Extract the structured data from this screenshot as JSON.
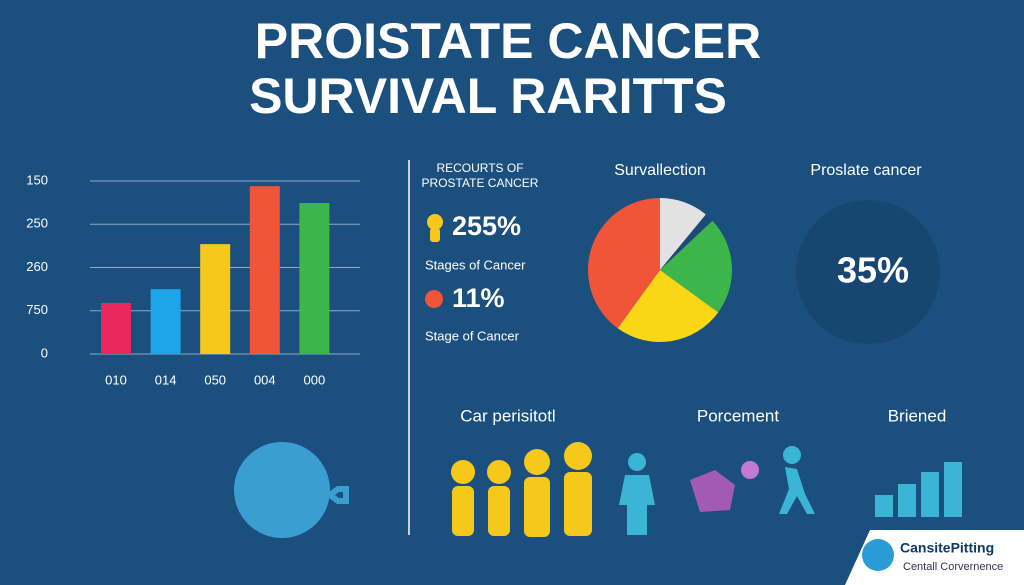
{
  "title": [
    "PROISTATE CANCER",
    "SURVIVAL RARITTS"
  ],
  "chart_data": [
    {
      "type": "bar",
      "categories": [
        "010",
        "014",
        "050",
        "004",
        "000"
      ],
      "values": [
        1.18,
        1.5,
        2.54,
        3.88,
        3.49
      ],
      "colors": [
        "#e8285e",
        "#1ea4e8",
        "#f6c81a",
        "#f0553a",
        "#3cb54a"
      ],
      "ylim": [
        0,
        4
      ],
      "yticks": [
        {
          "value": 0,
          "label": "0"
        },
        {
          "value": 1,
          "label": "750"
        },
        {
          "value": 2,
          "label": "260"
        },
        {
          "value": 3,
          "label": "250"
        },
        {
          "value": 4,
          "label": "150"
        }
      ],
      "grid": true
    },
    {
      "type": "pie",
      "title": "Survallection",
      "values": [
        11,
        2,
        22,
        25,
        40
      ],
      "colors": [
        "#e2e2e2",
        "#1e4a7a",
        "#3cb54a",
        "#f9d616",
        "#f0553a"
      ]
    }
  ],
  "stats": {
    "heading": [
      "RECOURTS OF",
      "PROSTATE CANCER"
    ],
    "items": [
      {
        "value": "255%",
        "label": "Stages of Cancer"
      },
      {
        "value": "11%",
        "label": "Stage of Cancer"
      }
    ]
  },
  "circle": {
    "title": "Proslate cancer",
    "value": "35%"
  },
  "bottom_labels": [
    "Car perisitotl",
    "Porcement",
    "Briened"
  ],
  "logo": {
    "name": "CansitePitting",
    "sub": "Centall Corvernence"
  }
}
